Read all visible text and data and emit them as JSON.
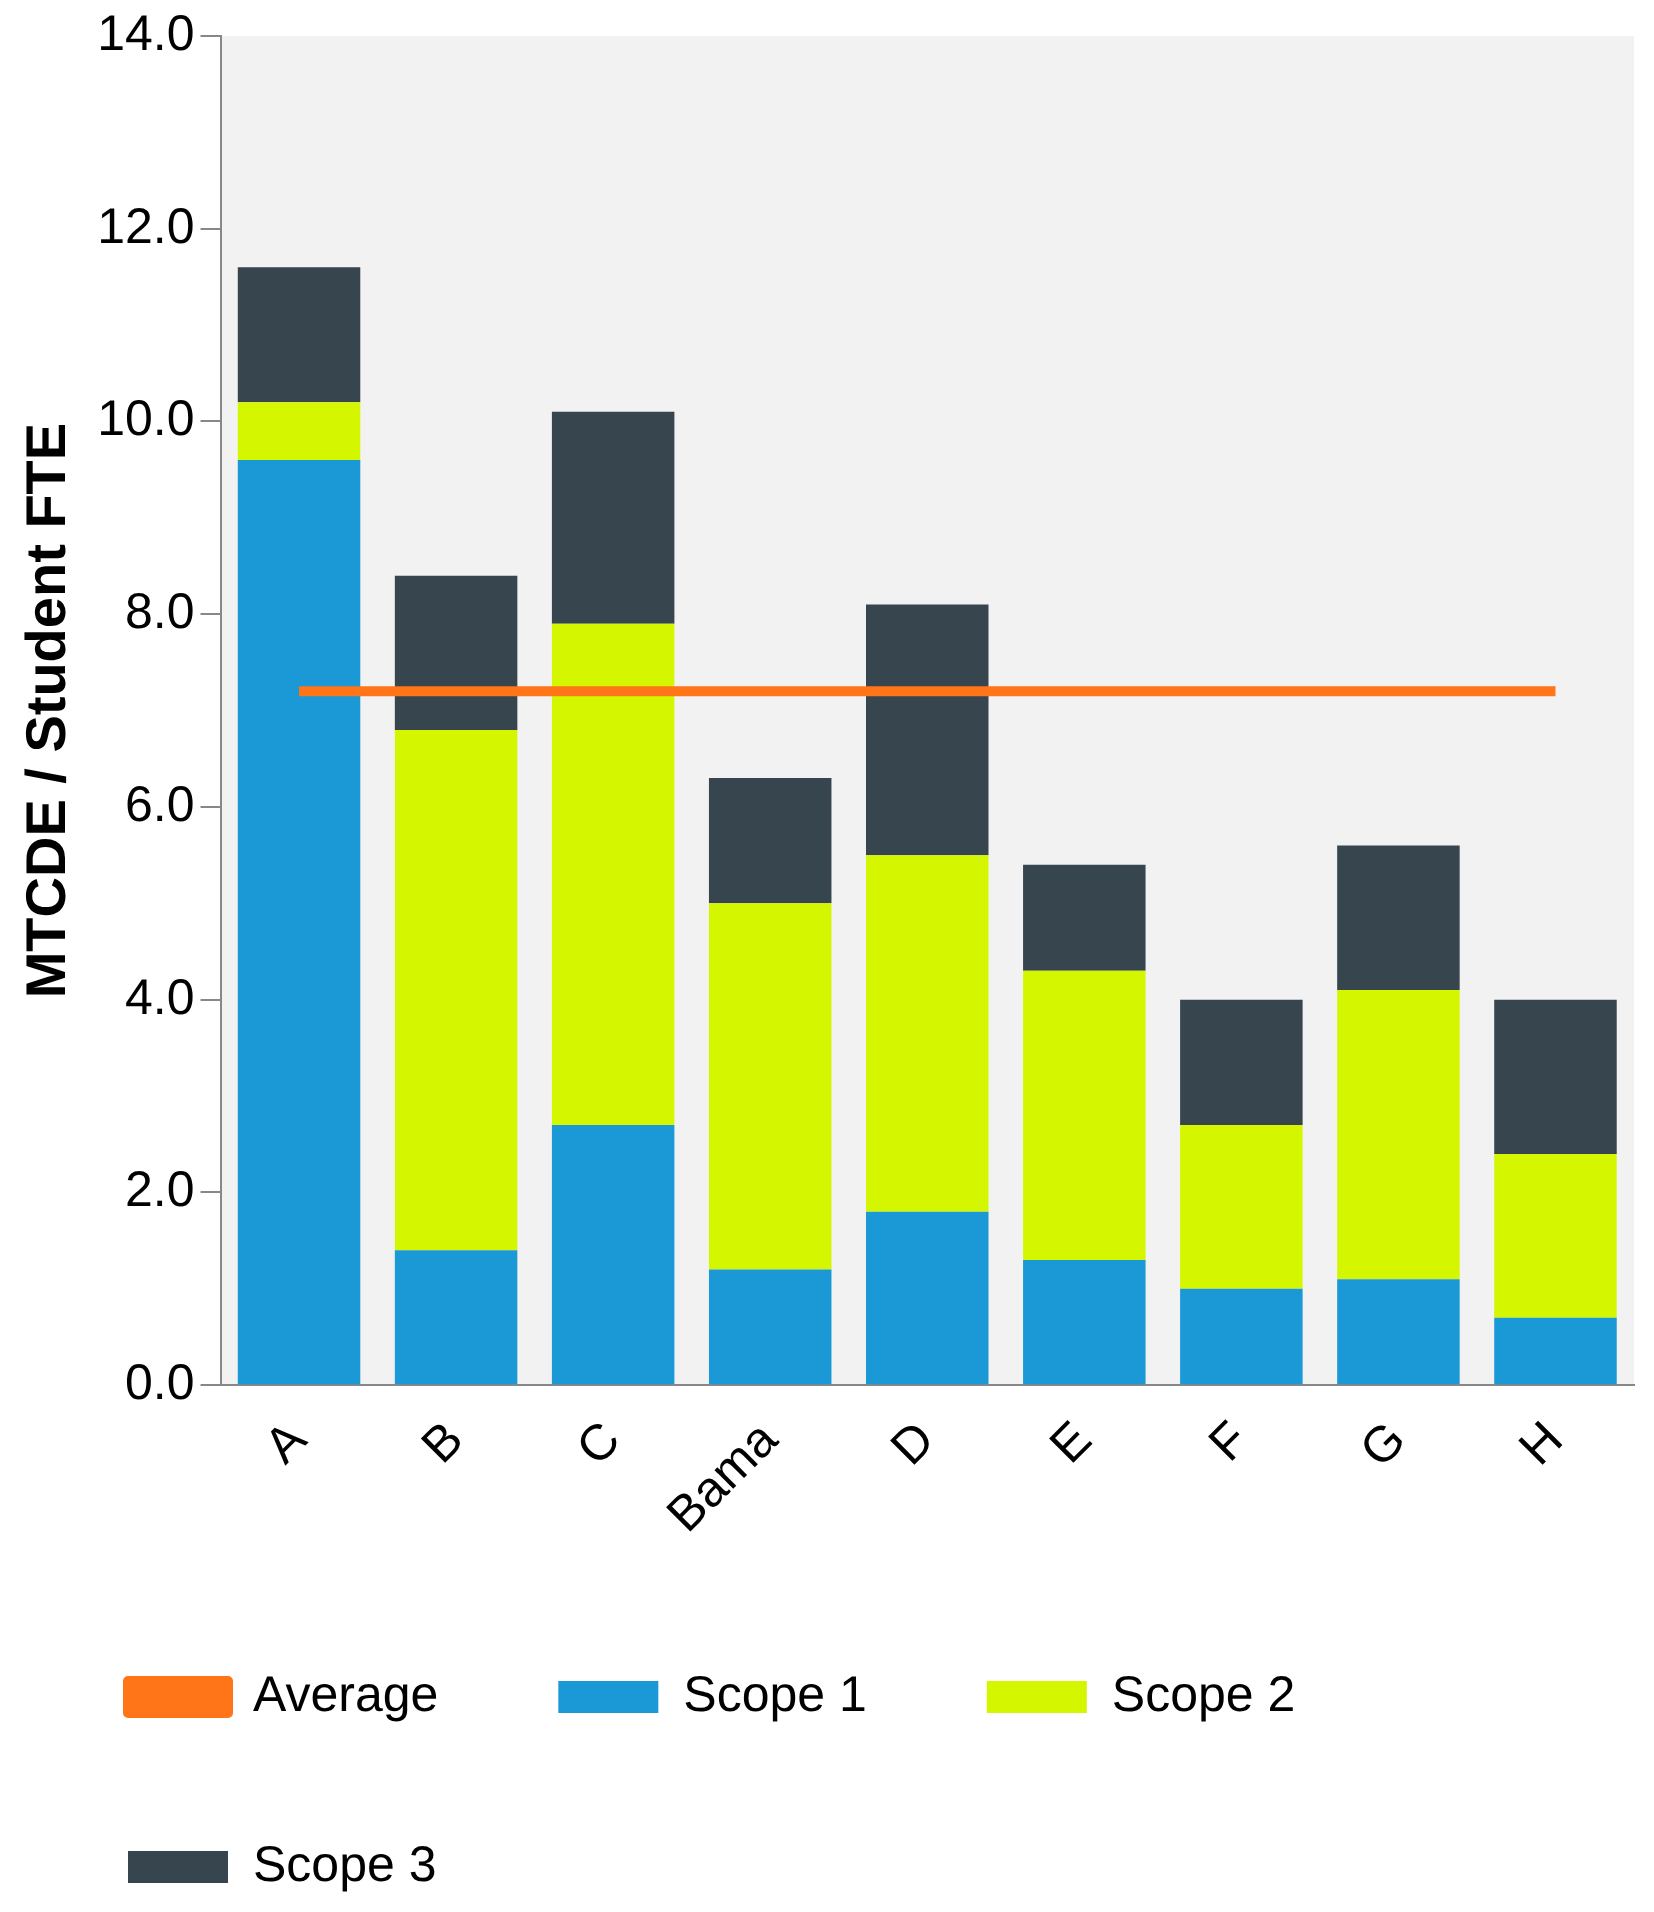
{
  "chart_data": {
    "type": "bar",
    "stacked": true,
    "ylabel": "MTCDE / Student FTE",
    "categories": [
      "A",
      "B",
      "C",
      "Bama",
      "D",
      "E",
      "F",
      "G",
      "H"
    ],
    "series": [
      {
        "name": "Scope 1",
        "color": "#1b98d6",
        "values": [
          9.6,
          1.4,
          2.7,
          1.2,
          1.8,
          1.3,
          1.0,
          1.1,
          0.7
        ]
      },
      {
        "name": "Scope 2",
        "color": "#d4f700",
        "values": [
          0.6,
          5.4,
          5.2,
          3.8,
          3.7,
          3.0,
          1.7,
          3.0,
          1.7
        ]
      },
      {
        "name": "Scope 3",
        "color": "#37454f",
        "values": [
          1.4,
          1.6,
          2.2,
          1.3,
          2.6,
          1.1,
          1.3,
          1.5,
          1.6
        ]
      },
      {
        "name": "Average",
        "type": "line",
        "color": "#ff7518",
        "values": [
          7.2,
          7.2,
          7.2,
          7.2,
          7.2,
          7.2,
          7.2,
          7.2,
          7.2
        ]
      }
    ],
    "ylim": [
      0,
      14
    ],
    "yticks": [
      {
        "value": 0,
        "label": "0.0"
      },
      {
        "value": 2,
        "label": "2.0"
      },
      {
        "value": 4,
        "label": "4.0"
      },
      {
        "value": 6,
        "label": "6.0"
      },
      {
        "value": 8,
        "label": "8.0"
      },
      {
        "value": 10,
        "label": "10.0"
      },
      {
        "value": 12,
        "label": "12.0"
      },
      {
        "value": 14,
        "label": "14.0"
      }
    ],
    "grid": false,
    "legend": "bottom",
    "marker": "none",
    "line_style": "solid"
  }
}
